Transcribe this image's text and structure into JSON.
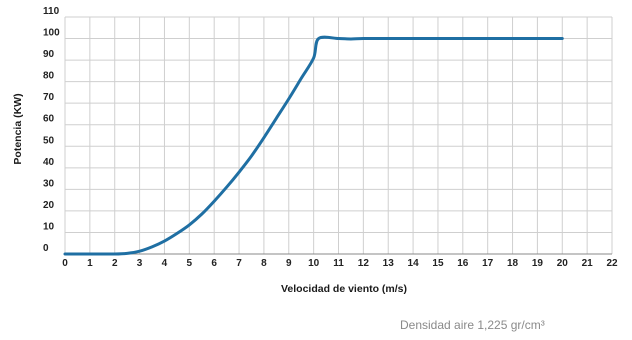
{
  "chart_data": {
    "type": "line",
    "title": "",
    "xlabel": "Velocidad de viento (m/s)",
    "ylabel": "Potencia (KW)",
    "xlim": [
      0,
      22
    ],
    "ylim": [
      0,
      110
    ],
    "x_ticks": [
      "0",
      "1",
      "2",
      "3",
      "4",
      "5",
      "6",
      "7",
      "8",
      "9",
      "10",
      "11",
      "12",
      "13",
      "14",
      "15",
      "16",
      "17",
      "18",
      "19",
      "20",
      "21",
      "22"
    ],
    "y_ticks": [
      "0",
      "10",
      "20",
      "30",
      "40",
      "50",
      "60",
      "70",
      "80",
      "90",
      "100",
      "110"
    ],
    "grid": true,
    "line_color": "#1f6fa3",
    "series": [
      {
        "name": "",
        "x": [
          0,
          1,
          2,
          2.5,
          3,
          3.5,
          4,
          4.5,
          5,
          5.5,
          6,
          6.5,
          7,
          7.5,
          8,
          8.5,
          9,
          9.5,
          10,
          10.2,
          11,
          11.5,
          12,
          13,
          14,
          15,
          16,
          17,
          18,
          19,
          20
        ],
        "y": [
          0,
          0,
          0,
          0.3,
          1.3,
          3.3,
          6,
          9.5,
          13.5,
          18.5,
          24.5,
          31,
          38,
          45.5,
          54,
          63,
          72,
          81.5,
          91,
          100,
          100,
          99.8,
          100,
          100,
          100,
          100,
          100,
          100,
          100,
          100,
          100
        ]
      }
    ]
  },
  "footnote": "Densidad aire 1,225 gr/cm³"
}
